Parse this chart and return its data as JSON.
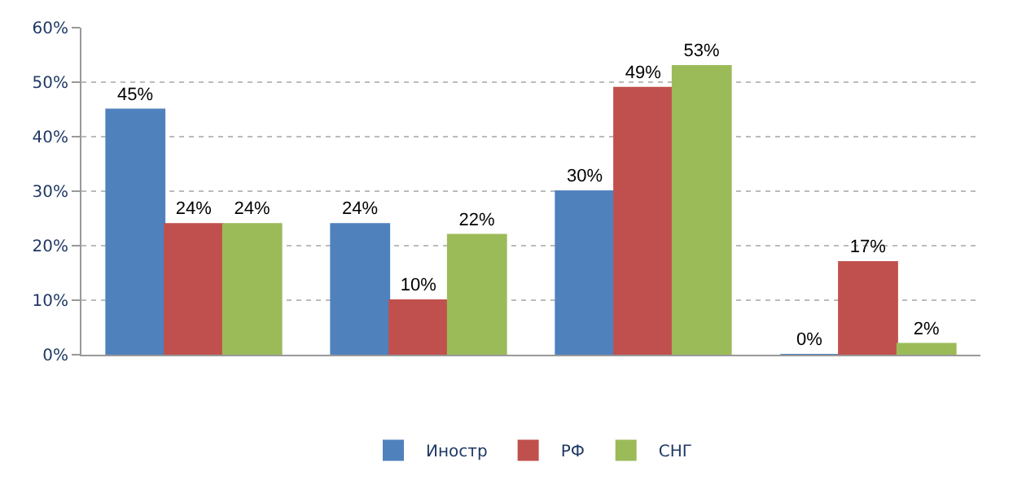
{
  "chart_data": {
    "type": "bar",
    "categories": [
      null,
      null,
      null,
      null
    ],
    "series": [
      {
        "name": "Иностр",
        "color": "#4f81bd",
        "values": [
          45,
          24,
          30,
          0
        ],
        "value_labels": [
          "45%",
          "24%",
          "30%",
          "0%"
        ]
      },
      {
        "name": "РФ",
        "color": "#c0504d",
        "values": [
          24,
          10,
          49,
          17
        ],
        "value_labels": [
          "24%",
          "10%",
          "49%",
          "17%"
        ]
      },
      {
        "name": "СНГ",
        "color": "#9bbb59",
        "values": [
          24,
          22,
          53,
          2
        ],
        "value_labels": [
          "24%",
          "22%",
          "53%",
          "2%"
        ]
      }
    ],
    "ylim": [
      0,
      60
    ],
    "yticks": [
      {
        "value": 0,
        "label": "0%"
      },
      {
        "value": 10,
        "label": "10%"
      },
      {
        "value": 20,
        "label": "20%"
      },
      {
        "value": 30,
        "label": "30%"
      },
      {
        "value": 40,
        "label": "40%"
      },
      {
        "value": 50,
        "label": "50%"
      },
      {
        "value": 60,
        "label": "60%"
      }
    ],
    "grid": "y",
    "legend": "bottom"
  }
}
